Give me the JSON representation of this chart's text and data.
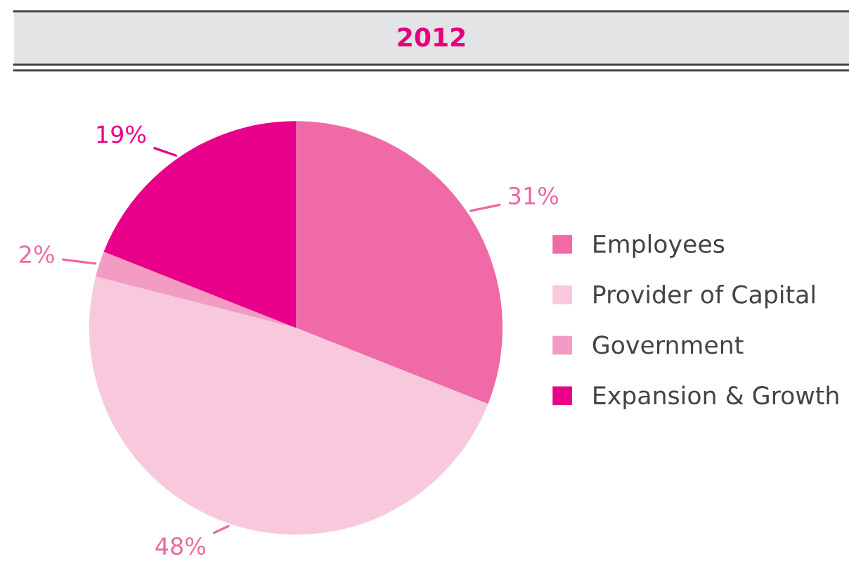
{
  "chart_data": {
    "type": "pie",
    "title": "2012",
    "categories": [
      "Employees",
      "Provider of Capital",
      "Government",
      "Expansion & Growth"
    ],
    "values": [
      31,
      48,
      2,
      19
    ],
    "colors": [
      "#ef6aa6",
      "#f8c9dc",
      "#f29cc4",
      "#e8008a"
    ],
    "value_labels": [
      "31%",
      "48%",
      "2%",
      "19%"
    ],
    "legend": "right"
  }
}
